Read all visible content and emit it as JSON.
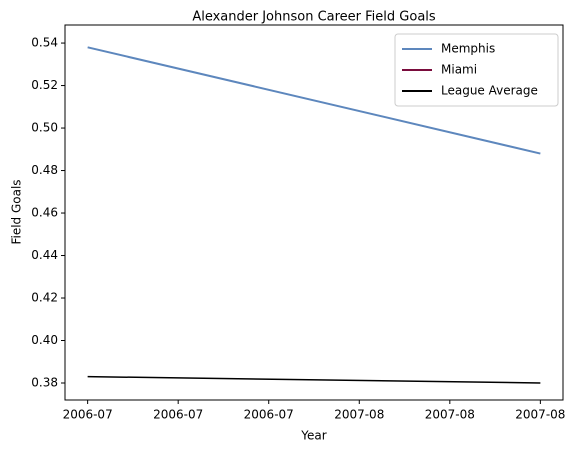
{
  "chart_data": {
    "type": "line",
    "title": "Alexander Johnson Career Field Goals",
    "xlabel": "Year",
    "ylabel": "Field Goals",
    "x": [
      0,
      1
    ],
    "series": [
      {
        "name": "Memphis",
        "color": "#5d87bd",
        "values": [
          0.538,
          0.488
        ]
      },
      {
        "name": "Miami",
        "color": "#7a0c3d",
        "values": [
          null,
          null
        ]
      },
      {
        "name": "League Average",
        "color": "#000000",
        "values": [
          0.383,
          0.38
        ]
      }
    ],
    "xlim": [
      -0.05,
      1.05
    ],
    "xticks": [
      {
        "value": 0,
        "label": "2006-07"
      },
      {
        "value": 0.2,
        "label": "2006-07"
      },
      {
        "value": 0.4,
        "label": "2006-07"
      },
      {
        "value": 0.6,
        "label": "2007-08"
      },
      {
        "value": 0.8,
        "label": "2007-08"
      },
      {
        "value": 1,
        "label": "2007-08"
      }
    ],
    "ylim": [
      0.372,
      0.5485
    ],
    "yticks": [
      0.38,
      {
        "value": 0.4,
        "label": "0.40"
      },
      0.42,
      0.44,
      0.46,
      0.48,
      {
        "value": 0.5,
        "label": "0.50"
      },
      0.52,
      0.54
    ],
    "legend": "upper right"
  }
}
